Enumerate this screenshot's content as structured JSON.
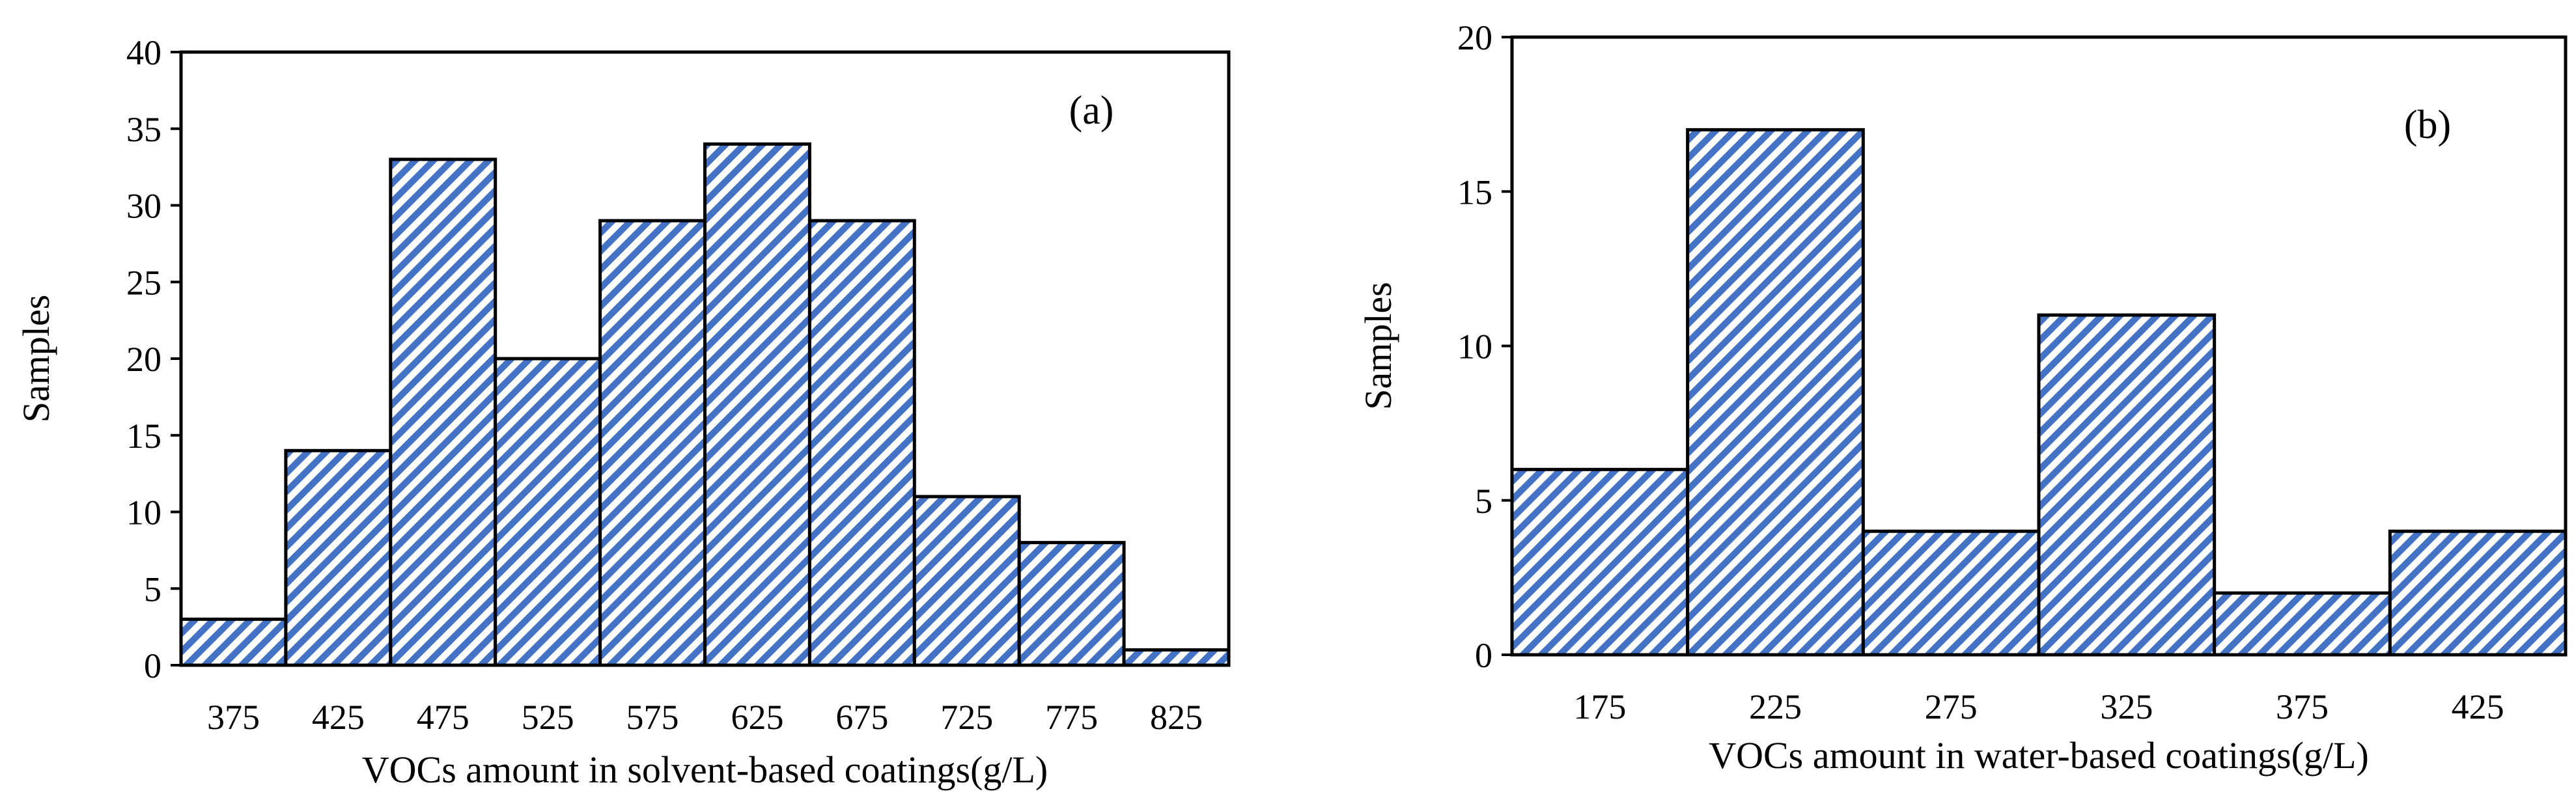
{
  "colors": {
    "hatch_fg": "#4472C4",
    "hatch_bg": "#ffffff",
    "stroke": "#000000"
  },
  "chart_data": [
    {
      "type": "bar",
      "panel_label": "(a)",
      "categories": [
        "375",
        "425",
        "475",
        "525",
        "575",
        "625",
        "675",
        "725",
        "775",
        "825"
      ],
      "values": [
        3,
        14,
        33,
        20,
        29,
        34,
        29,
        11,
        8,
        1
      ],
      "xlabel": "VOCs amount in solvent-based coatings(g/L)",
      "ylabel": "Samples",
      "ylim": [
        0,
        40
      ],
      "yticks": [
        0,
        5,
        10,
        15,
        20,
        25,
        30,
        35,
        40
      ],
      "ytick_labels": [
        "0",
        "5",
        "10",
        "15",
        "20",
        "25",
        "30",
        "35",
        "40"
      ]
    },
    {
      "type": "bar",
      "panel_label": "(b)",
      "categories": [
        "175",
        "225",
        "275",
        "325",
        "375",
        "425"
      ],
      "values": [
        6,
        17,
        4,
        11,
        2,
        4
      ],
      "xlabel": "VOCs amount in water-based coatings(g/L)",
      "ylabel": "Samples",
      "ylim": [
        0,
        20
      ],
      "yticks": [
        0,
        5,
        10,
        15,
        20
      ],
      "ytick_labels": [
        "0",
        "5",
        "10",
        "15",
        "20"
      ]
    }
  ]
}
